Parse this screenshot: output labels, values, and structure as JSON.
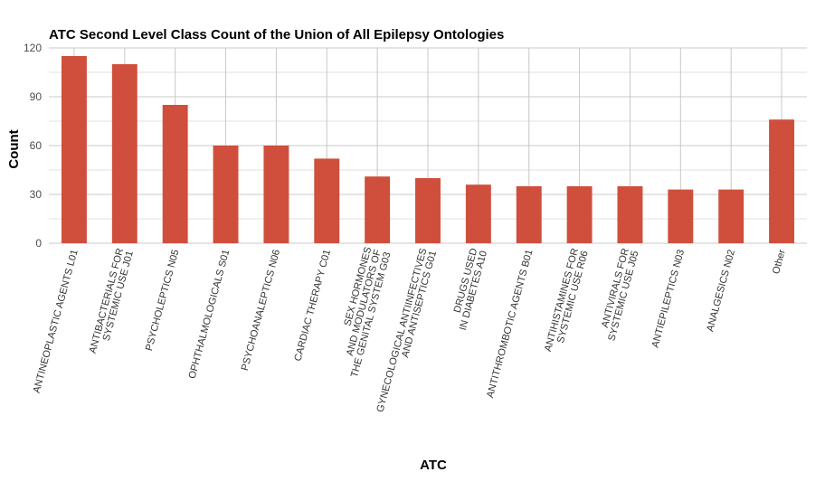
{
  "chart_data": {
    "type": "bar",
    "title": "ATC Second Level Class Count of the Union of All Epilepsy Ontologies",
    "xlabel": "ATC",
    "ylabel": "Count",
    "ylim": [
      0,
      120
    ],
    "yticks": [
      0,
      30,
      60,
      90,
      120
    ],
    "grid": true,
    "bar_color": "#cf4f3c",
    "categories": [
      [
        "ANTINEOPLASTIC AGENTS L01"
      ],
      [
        "ANTIBACTERIALS FOR",
        "SYSTEMIC USE J01"
      ],
      [
        "PSYCHOLEPTICS N05"
      ],
      [
        "OPHTHALMOLOGICALS S01"
      ],
      [
        "PSYCHOANALEPTICS N06"
      ],
      [
        "CARDIAC THERAPY C01"
      ],
      [
        "SEX HORMONES",
        "AND MODULATORS OF",
        "THE GENITAL SYSTEM G03"
      ],
      [
        "GYNECOLOGICAL ANTIINFECTIVES",
        "AND ANTISEPTICS G01"
      ],
      [
        "DRUGS USED",
        "IN DIABETES A10"
      ],
      [
        "ANTITHROMBOTIC AGENTS B01"
      ],
      [
        "ANTIHISTAMINES FOR",
        "SYSTEMIC USE R06"
      ],
      [
        "ANTIVIRALS FOR",
        "SYSTEMIC USE J05"
      ],
      [
        "ANTIEPILEPTICS N03"
      ],
      [
        "ANALGESICS N02"
      ],
      [
        "Other"
      ]
    ],
    "values": [
      115,
      110,
      85,
      60,
      60,
      52,
      41,
      40,
      36,
      35,
      35,
      35,
      33,
      33,
      76
    ]
  }
}
